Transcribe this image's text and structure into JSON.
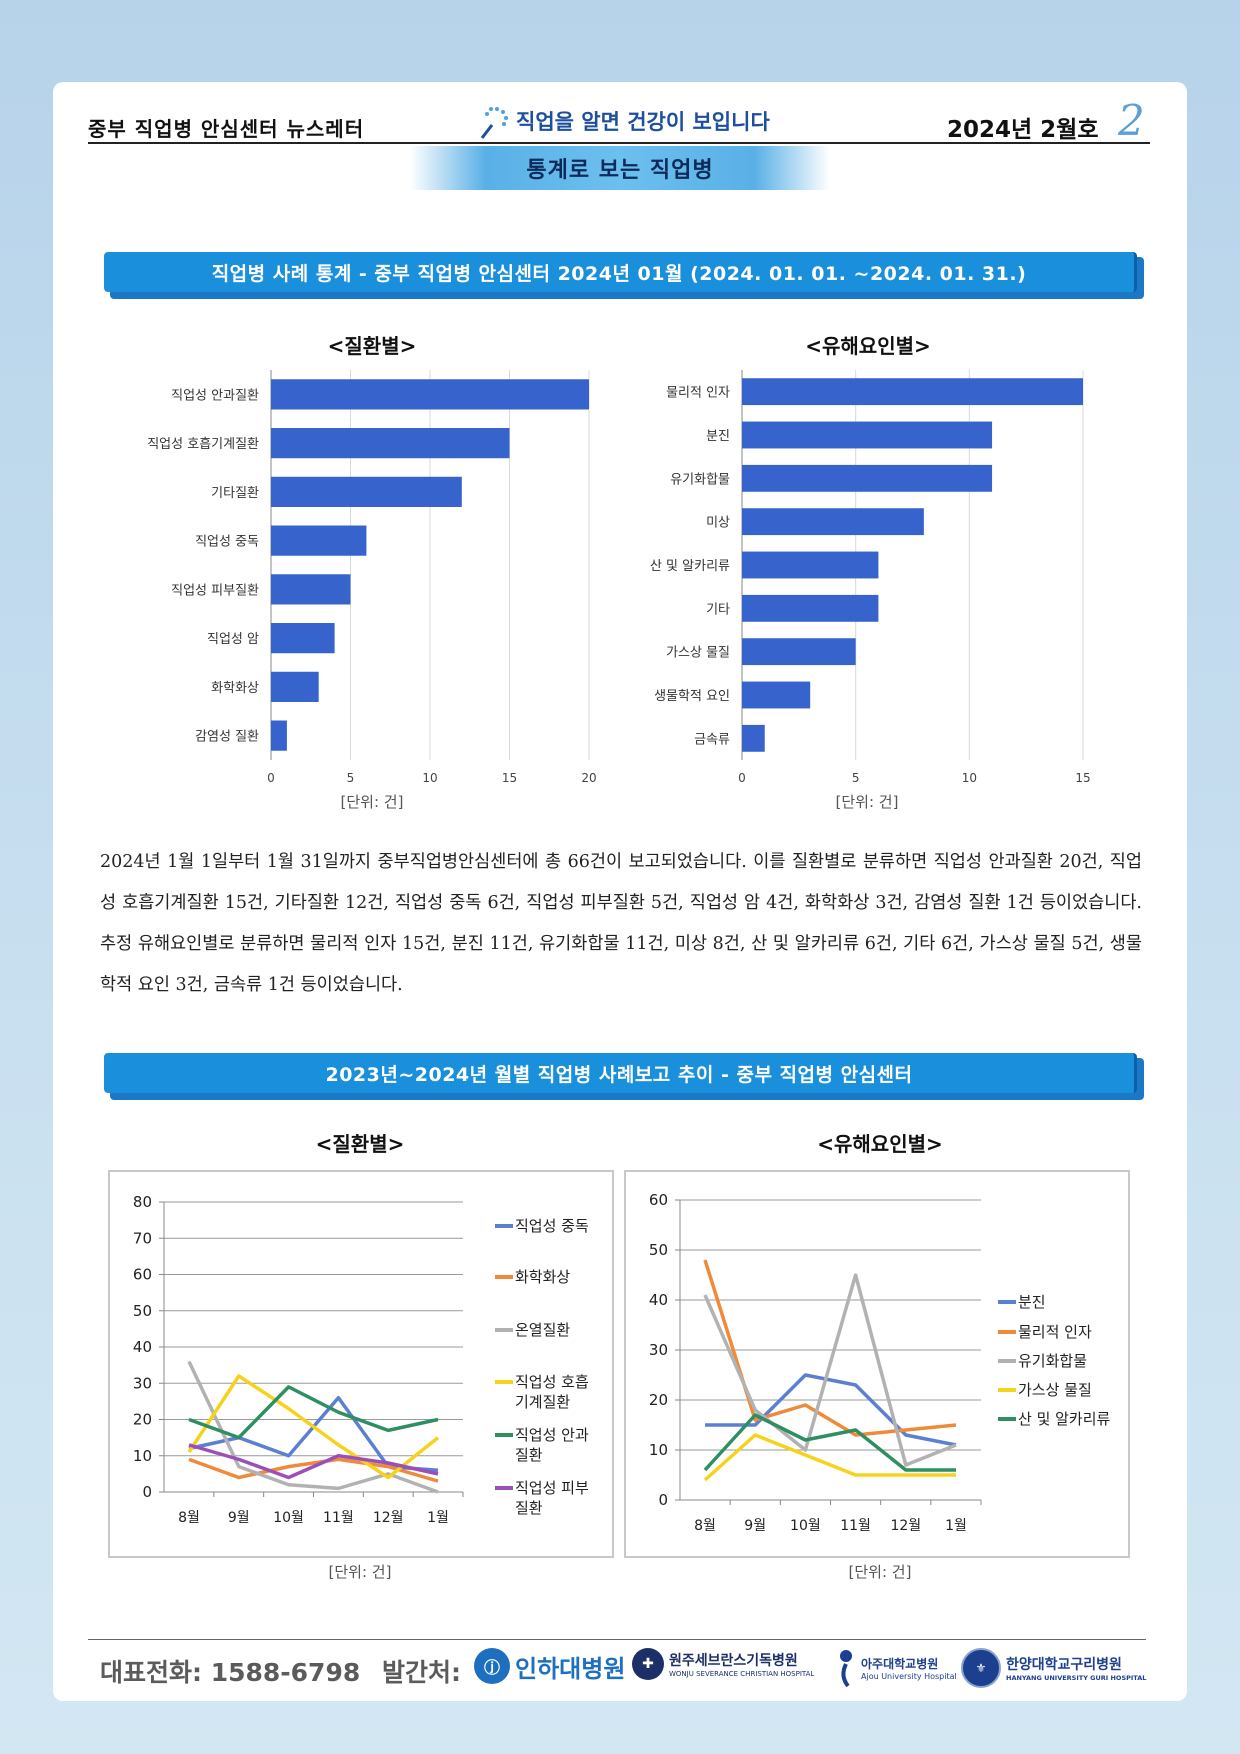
{
  "header": {
    "newsletter_name": "중부 직업병 안심센터 뉴스레터",
    "slogan": "직업을 알면 건강이 보입니다",
    "issue": "2024년 2월호",
    "page_number": "2",
    "section_title": "통계로 보는 직업병"
  },
  "banner1": "직업병 사례 통계 - 중부 직업병 안심센터   2024년 01월 (2024. 01. 01. ~2024. 01. 31.)",
  "banner2": "2023년~2024년 월별 직업병 사례보고 추이 - 중부 직업병 안심센터",
  "unit_label": "[단위: 건]",
  "paragraph": "2024년 1월 1일부터 1월 31일까지 중부직업병안심센터에 총 66건이 보고되었습니다. 이를 질환별로 분류하면 직업성 안과질환 20건, 직업성 호흡기계질환 15건, 기타질환 12건, 직업성 중독 6건, 직업성 피부질환 5건, 직업성 암 4건, 화학화상 3건, 감염성 질환 1건 등이었습니다. 추정 유해요인별로 분류하면 물리적 인자 15건, 분진 11건, 유기화합물 11건, 미상 8건, 산 및 알카리류 6건, 기타 6건, 가스상 물질 5건, 생물학적 요인 3건, 금속류 1건 등이었습니다.",
  "chart_data": [
    {
      "type": "bar",
      "orientation": "horizontal",
      "title": "<질환별>",
      "categories": [
        "직업성 안과질환",
        "직업성 호흡기계질환",
        "기타질환",
        "직업성 중독",
        "직업성 피부질환",
        "직업성 암",
        "화학화상",
        "감염성 질환"
      ],
      "values": [
        20,
        15,
        12,
        6,
        5,
        4,
        3,
        1
      ],
      "xlim": [
        0,
        20
      ],
      "xticks": [
        0,
        5,
        10,
        15,
        20
      ],
      "xlabel": "[단위: 건]",
      "color": "#3763cc",
      "grid": true
    },
    {
      "type": "bar",
      "orientation": "horizontal",
      "title": "<유해요인별>",
      "categories": [
        "물리적 인자",
        "분진",
        "유기화합물",
        "미상",
        "산 및 알카리류",
        "기타",
        "가스상 물질",
        "생물학적 요인",
        "금속류"
      ],
      "values": [
        15,
        11,
        11,
        8,
        6,
        6,
        5,
        3,
        1
      ],
      "xlim": [
        0,
        15
      ],
      "xticks": [
        0,
        5,
        10,
        15
      ],
      "xlabel": "[단위: 건]",
      "color": "#3763cc",
      "grid": true
    },
    {
      "type": "line",
      "title": "<질환별>",
      "categories": [
        "8월",
        "9월",
        "10월",
        "11월",
        "12월",
        "1월"
      ],
      "ylim": [
        0,
        80
      ],
      "yticks": [
        0,
        10,
        20,
        30,
        40,
        50,
        60,
        70,
        80
      ],
      "xlabel": "[단위: 건]",
      "legend_position": "right",
      "series": [
        {
          "name": "직업성 중독",
          "color": "#5b7fd1",
          "values": [
            12,
            15,
            10,
            26,
            7,
            6
          ]
        },
        {
          "name": "화학화상",
          "color": "#ef8a3b",
          "values": [
            9,
            4,
            7,
            9,
            7,
            3
          ]
        },
        {
          "name": "온열질환",
          "color": "#b2b2b2",
          "values": [
            36,
            7,
            2,
            1,
            5,
            0
          ]
        },
        {
          "name": "직업성 호흡\n기계질환",
          "color": "#f7d21b",
          "values": [
            11,
            32,
            23,
            13,
            4,
            15
          ]
        },
        {
          "name": "직업성 안과\n질환",
          "color": "#2f8f63",
          "values": [
            20,
            15,
            29,
            22,
            17,
            20
          ]
        },
        {
          "name": "직업성 피부\n질환",
          "color": "#9a50b8",
          "values": [
            13,
            9,
            4,
            10,
            8,
            5
          ]
        }
      ]
    },
    {
      "type": "line",
      "title": "<유해요인별>",
      "categories": [
        "8월",
        "9월",
        "10월",
        "11월",
        "12월",
        "1월"
      ],
      "ylim": [
        0,
        60
      ],
      "yticks": [
        0,
        10,
        20,
        30,
        40,
        50,
        60
      ],
      "xlabel": "[단위: 건]",
      "legend_position": "right",
      "series": [
        {
          "name": "분진",
          "color": "#5b7fd1",
          "values": [
            15,
            15,
            25,
            23,
            13,
            11
          ]
        },
        {
          "name": "물리적 인자",
          "color": "#ef8a3b",
          "values": [
            48,
            16,
            19,
            13,
            14,
            15
          ]
        },
        {
          "name": "유기화합물",
          "color": "#b2b2b2",
          "values": [
            41,
            18,
            10,
            45,
            7,
            11
          ]
        },
        {
          "name": "가스상 물질",
          "color": "#f7d21b",
          "values": [
            4,
            13,
            9,
            5,
            5,
            5
          ]
        },
        {
          "name": "산 및 알카리류",
          "color": "#2f8f63",
          "values": [
            6,
            17,
            12,
            14,
            6,
            6
          ]
        }
      ]
    }
  ],
  "footer": {
    "phone": "대표전화:  1588-6798",
    "publisher_label": "발간처:",
    "hospitals": [
      {
        "name": "인하대병원",
        "color": "#1d6fc0"
      },
      {
        "name": "원주세브란스기독병원",
        "sub": "WONJU SEVERANCE CHRISTIAN HOSPITAL",
        "color": "#1c2f66"
      },
      {
        "name": "아주대학교병원",
        "sub": "Ajou University Hospital",
        "color": "#1c3f8f"
      },
      {
        "name": "한양대학교구리병원",
        "sub": "HANYANG UNIVERSITY GURI HOSPITAL",
        "color": "#1c3f8f"
      }
    ]
  }
}
